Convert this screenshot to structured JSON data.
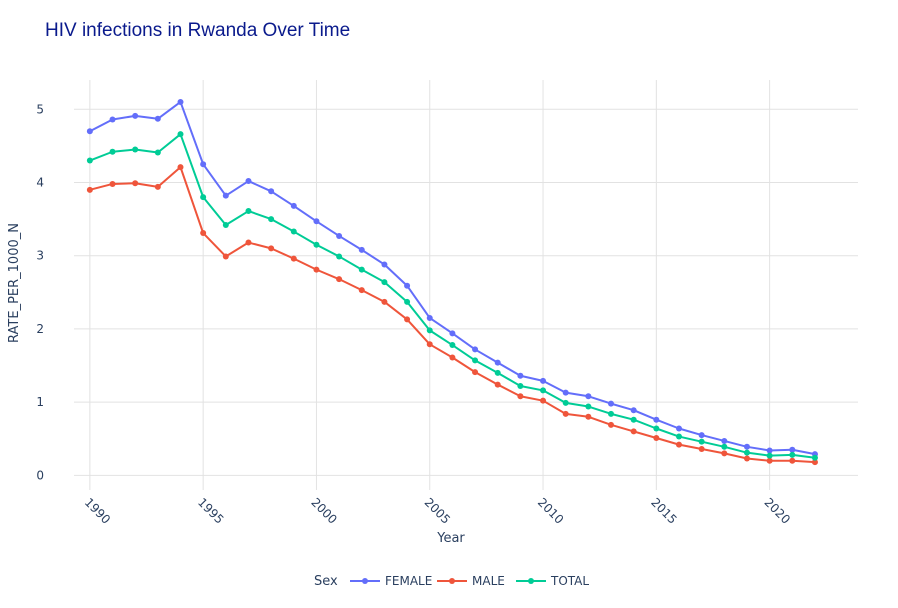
{
  "chart_data": {
    "type": "line",
    "title": "HIV infections in Rwanda Over Time",
    "xlabel": "Year",
    "ylabel": "RATE_PER_1000_N",
    "xlim": [
      1989.3,
      2023.9
    ],
    "ylim": [
      -0.2,
      5.4
    ],
    "x_ticks": [
      1990,
      1995,
      2000,
      2005,
      2010,
      2015,
      2020
    ],
    "y_ticks": [
      0,
      1,
      2,
      3,
      4,
      5
    ],
    "grid": true,
    "legend": {
      "title": "Sex",
      "position": "bottom-center"
    },
    "x": [
      1990,
      1991,
      1992,
      1993,
      1994,
      1995,
      1996,
      1997,
      1998,
      1999,
      2000,
      2001,
      2002,
      2003,
      2004,
      2005,
      2006,
      2007,
      2008,
      2009,
      2010,
      2011,
      2012,
      2013,
      2014,
      2015,
      2016,
      2017,
      2018,
      2019,
      2020,
      2021,
      2022
    ],
    "series": [
      {
        "name": "FEMALE",
        "color": "#636efa",
        "values": [
          4.7,
          4.86,
          4.91,
          4.87,
          5.1,
          4.25,
          3.82,
          4.02,
          3.88,
          3.68,
          3.47,
          3.27,
          3.08,
          2.88,
          2.59,
          2.15,
          1.94,
          1.72,
          1.54,
          1.36,
          1.29,
          1.13,
          1.08,
          0.98,
          0.89,
          0.76,
          0.64,
          0.55,
          0.47,
          0.39,
          0.34,
          0.35,
          0.29
        ]
      },
      {
        "name": "MALE",
        "color": "#ef553b",
        "values": [
          3.9,
          3.98,
          3.99,
          3.94,
          4.21,
          3.31,
          2.99,
          3.18,
          3.1,
          2.96,
          2.81,
          2.68,
          2.53,
          2.37,
          2.13,
          1.79,
          1.61,
          1.41,
          1.24,
          1.08,
          1.02,
          0.84,
          0.8,
          0.69,
          0.6,
          0.51,
          0.42,
          0.36,
          0.3,
          0.23,
          0.2,
          0.2,
          0.18
        ]
      },
      {
        "name": "TOTAL",
        "color": "#00cc96",
        "values": [
          4.3,
          4.42,
          4.45,
          4.41,
          4.66,
          3.8,
          3.42,
          3.61,
          3.5,
          3.33,
          3.15,
          2.99,
          2.81,
          2.64,
          2.37,
          1.98,
          1.78,
          1.57,
          1.4,
          1.22,
          1.16,
          0.99,
          0.94,
          0.84,
          0.76,
          0.64,
          0.53,
          0.46,
          0.39,
          0.31,
          0.27,
          0.28,
          0.24
        ]
      }
    ]
  }
}
